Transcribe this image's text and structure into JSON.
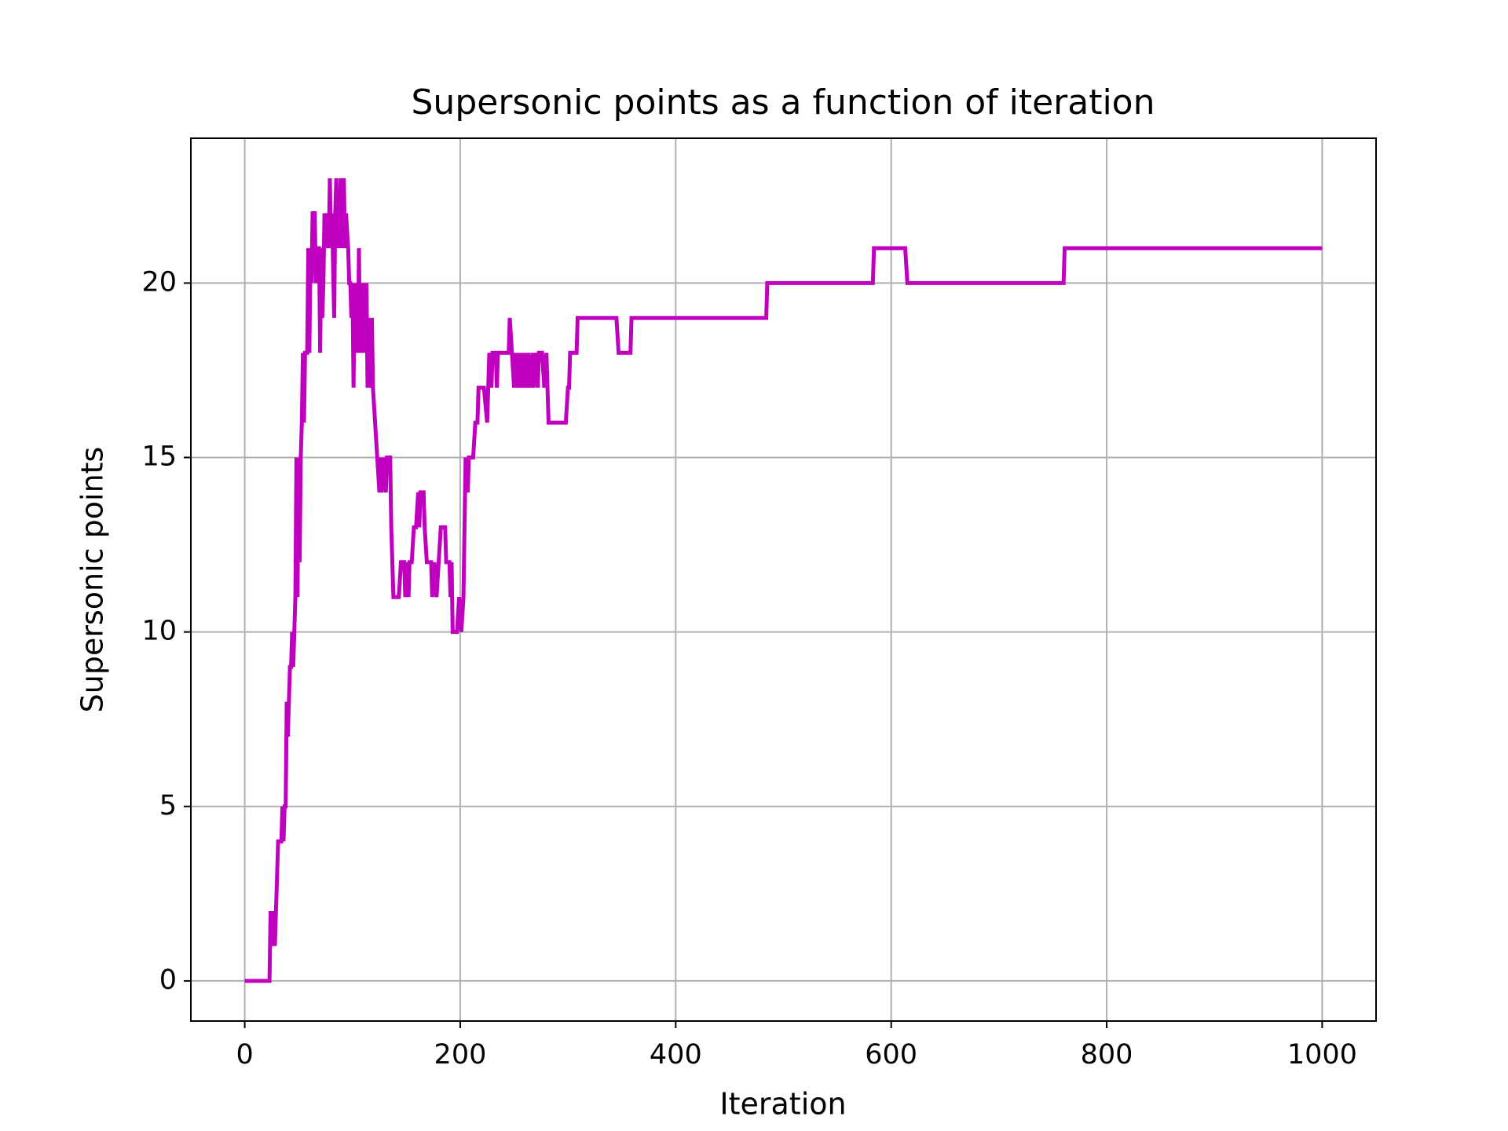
{
  "chart_data": {
    "type": "line",
    "title": "Supersonic points as a function of iteration",
    "xlabel": "Iteration",
    "ylabel": "Supersonic points",
    "x": [
      0,
      23,
      24,
      26,
      27,
      28,
      31,
      34,
      35,
      36,
      37,
      38,
      39,
      40,
      41,
      42,
      43,
      44,
      45,
      46,
      47,
      48,
      49,
      50,
      51,
      52,
      53,
      54,
      55,
      56,
      58,
      59,
      60,
      61,
      62,
      63,
      65,
      66,
      67,
      69,
      70,
      71,
      72,
      73,
      74,
      76,
      77,
      78,
      79,
      80,
      81,
      83,
      84,
      85,
      86,
      87,
      88,
      89,
      90,
      92,
      93,
      94,
      96,
      97,
      98,
      99,
      100,
      101,
      102,
      103,
      104,
      105,
      106,
      107,
      108,
      109,
      110,
      111,
      112,
      113,
      114,
      115,
      116,
      117,
      118,
      119,
      121,
      123,
      125,
      126,
      127,
      129,
      131,
      132,
      135,
      136,
      138,
      143,
      145,
      148,
      149,
      151,
      152,
      153,
      155,
      157,
      159,
      161,
      162,
      163,
      166,
      167,
      169,
      173,
      174,
      176,
      178,
      180,
      182,
      186,
      187,
      190,
      191,
      192,
      193,
      197,
      199,
      201,
      203,
      205,
      207,
      208,
      212,
      214,
      216,
      217,
      222,
      225,
      226,
      227,
      229,
      230,
      233,
      234,
      235,
      245,
      246,
      248,
      250,
      251,
      253,
      254,
      256,
      257,
      259,
      260,
      262,
      263,
      265,
      267,
      268,
      270,
      272,
      273,
      276,
      278,
      280,
      282,
      298,
      300,
      301,
      302,
      308,
      309,
      345,
      347,
      358,
      359,
      484,
      485,
      583,
      584,
      613,
      615,
      760,
      761,
      1000
    ],
    "values": [
      0,
      0,
      2,
      1,
      2,
      1,
      4,
      4,
      5,
      4,
      5,
      5,
      8,
      7,
      8,
      9,
      9,
      10,
      9,
      10,
      11,
      15,
      11,
      15,
      12,
      15,
      16,
      18,
      16,
      18,
      18,
      21,
      18,
      21,
      20,
      22,
      22,
      20,
      21,
      21,
      18,
      21,
      19,
      20,
      22,
      21,
      22,
      21,
      23,
      21,
      22,
      19,
      22,
      23,
      21,
      22,
      21,
      23,
      21,
      23,
      21,
      22,
      21,
      20,
      20,
      19,
      20,
      17,
      20,
      18,
      20,
      18,
      21,
      18,
      20,
      18,
      19,
      20,
      18,
      20,
      17,
      19,
      17,
      18,
      19,
      17,
      16,
      15,
      14,
      15,
      14,
      15,
      14,
      15,
      15,
      13,
      11,
      11,
      12,
      12,
      11,
      12,
      11,
      12,
      12,
      13,
      13,
      14,
      13,
      14,
      14,
      13,
      12,
      12,
      11,
      12,
      11,
      12,
      13,
      13,
      12,
      12,
      11,
      12,
      10,
      10,
      11,
      10,
      11,
      15,
      14,
      15,
      15,
      16,
      16,
      17,
      17,
      16,
      17,
      18,
      17,
      18,
      18,
      17,
      18,
      18,
      19,
      18,
      17,
      18,
      17,
      18,
      17,
      18,
      17,
      18,
      17,
      18,
      17,
      18,
      17,
      18,
      17,
      18,
      18,
      17,
      18,
      16,
      16,
      17,
      17,
      18,
      18,
      19,
      19,
      18,
      18,
      19,
      19,
      20,
      20,
      21,
      21,
      20,
      20,
      21,
      21
    ],
    "color": "#bf00bf",
    "xlim": [
      -50,
      1050
    ],
    "ylim": [
      -1.15,
      24.15
    ],
    "xticks": [
      0,
      200,
      400,
      600,
      800,
      1000
    ],
    "yticks": [
      0,
      5,
      10,
      15,
      20
    ],
    "grid": true
  }
}
